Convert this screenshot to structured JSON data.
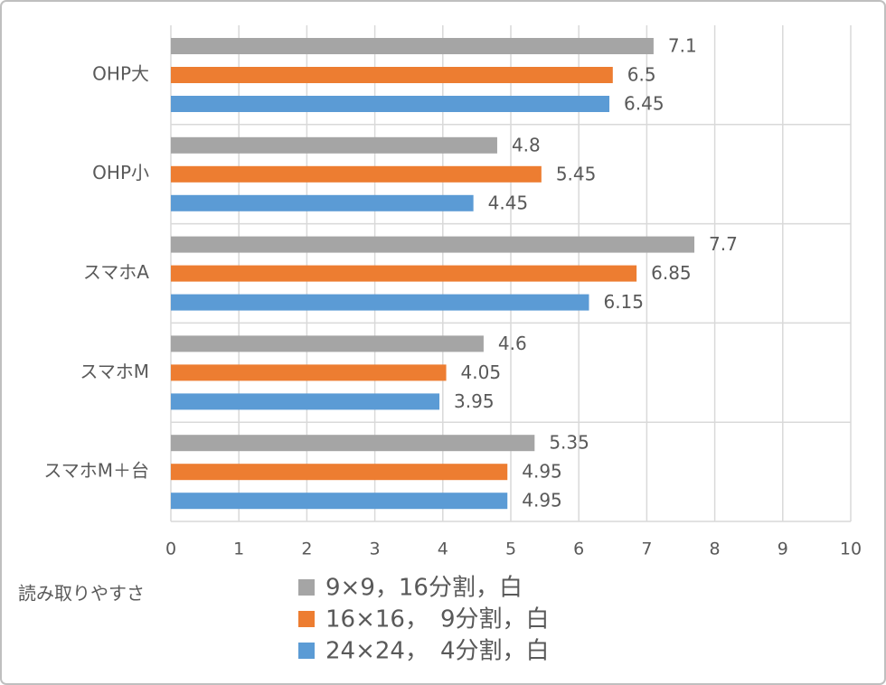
{
  "chart_data": {
    "type": "hbar",
    "x_label": "読み取りやすさ",
    "categories": [
      "OHP大",
      "OHP小",
      "スマホA",
      "スマホM",
      "スマホM＋台"
    ],
    "series": [
      {
        "name": "9×9，16分割，白",
        "color": "#a5a5a5",
        "values": [
          7.1,
          4.8,
          7.7,
          4.6,
          5.35
        ]
      },
      {
        "name": "16×16，　9分割，白",
        "color": "#ed7d31",
        "values": [
          6.5,
          5.45,
          6.85,
          4.05,
          4.95
        ]
      },
      {
        "name": "24×24，　4分割，白",
        "color": "#5b9bd5",
        "values": [
          6.45,
          4.45,
          6.15,
          3.95,
          4.95
        ]
      }
    ],
    "xlim": [
      0,
      10
    ],
    "xticks": [
      0,
      1,
      2,
      3,
      4,
      5,
      6,
      7,
      8,
      9,
      10
    ],
    "grid": true
  }
}
